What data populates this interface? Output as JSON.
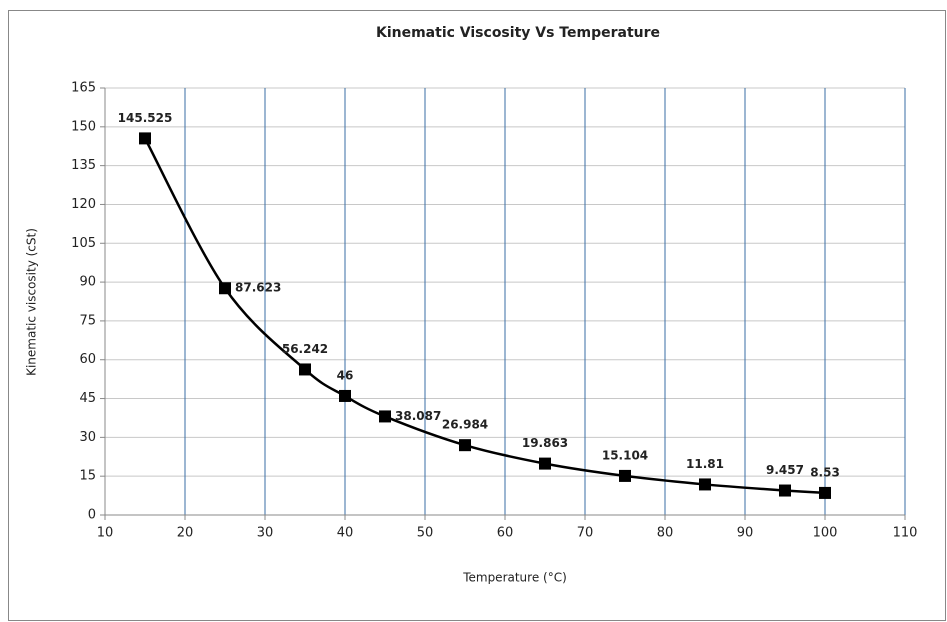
{
  "chart_data": {
    "type": "line",
    "title": "Kinematic Viscosity Vs Temperature",
    "x_label": "Temperature (°C)",
    "y_label": "Kinematic viscosity (cSt)",
    "x": [
      15,
      25,
      35,
      40,
      45,
      55,
      65,
      75,
      85,
      95,
      100
    ],
    "series": [
      {
        "name": "Kinematic viscosity",
        "color": "#000000",
        "values": [
          145.525,
          87.623,
          56.242,
          46,
          38.087,
          26.984,
          19.863,
          15.104,
          11.81,
          9.457,
          8.53
        ]
      }
    ],
    "xlim": [
      10,
      110
    ],
    "xticks": [
      10,
      20,
      30,
      40,
      50,
      60,
      70,
      80,
      90,
      100,
      110
    ],
    "ylim": [
      0,
      165
    ],
    "yticks": [
      0,
      15,
      30,
      45,
      60,
      75,
      90,
      105,
      120,
      135,
      150,
      165
    ],
    "grid": true,
    "x_grid_color": "#3a6ea5",
    "y_grid_color": "#c8c8c8"
  }
}
